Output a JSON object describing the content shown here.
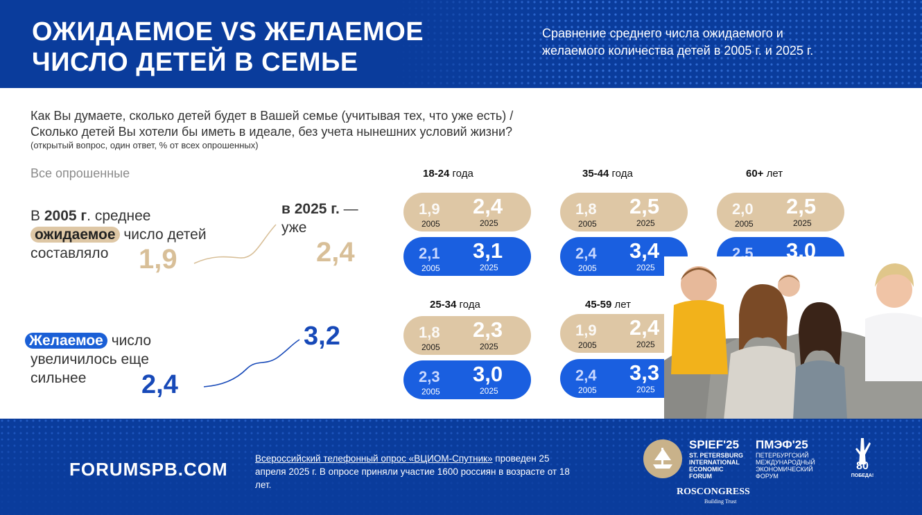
{
  "header": {
    "title_line1": "ОЖИДАЕМОЕ VS ЖЕЛАЕМОЕ",
    "title_line2": "ЧИСЛО ДЕТЕЙ В СЕМЬЕ",
    "subtitle_line1": "Сравнение среднего числа ожидаемого и",
    "subtitle_line2": "желаемого количества детей в 2005 г. и 2025 г."
  },
  "question": {
    "line1": "Как Вы думаете, сколько детей будет в Вашей семье (учитывая тех, что уже есть) /",
    "line2": "Сколько детей Вы хотели бы иметь в идеале, без учета нынешних условий жизни?",
    "note": "(открытый вопрос, один ответ, % от всех опрошенных)"
  },
  "all_respondents": {
    "label": "Все опрошенные",
    "expected": {
      "pre": "В ",
      "year": "2005 г",
      "post": ". среднее",
      "highlight": "ожидаемое",
      "after_highlight": " число детей",
      "line3": "составляло",
      "value_2005": "1,9",
      "label_2025_bold": "в 2025 г.",
      "label_2025_rest": " —",
      "label_2025_line2": "уже",
      "value_2025": "2,4"
    },
    "desired": {
      "highlight": "Желаемое",
      "after_highlight": " число",
      "line2": "увеличилось еще",
      "line3": "сильнее",
      "value_2005": "2,4",
      "value_2025": "3,2"
    }
  },
  "year_labels": {
    "y2005": "2005",
    "y2025": "2025"
  },
  "age_groups": [
    {
      "age_bold": "18-24",
      "age_rest": " года",
      "expected_2005": "1,9",
      "expected_2025": "2,4",
      "desired_2005": "2,1",
      "desired_2025": "3,1"
    },
    {
      "age_bold": "35-44",
      "age_rest": " года",
      "expected_2005": "1,8",
      "expected_2025": "2,5",
      "desired_2005": "2,4",
      "desired_2025": "3,4"
    },
    {
      "age_bold": "60+",
      "age_rest": " лет",
      "expected_2005": "2,0",
      "expected_2025": "2,5",
      "desired_2005": "2,5",
      "desired_2025": "3,0"
    },
    {
      "age_bold": "25-34",
      "age_rest": " года",
      "expected_2005": "1,8",
      "expected_2025": "2,3",
      "desired_2005": "2,3",
      "desired_2025": "3,0"
    },
    {
      "age_bold": "45-59",
      "age_rest": " лет",
      "expected_2005": "1,9",
      "expected_2025": "2,4",
      "desired_2005": "2,4",
      "desired_2025": "3,3"
    }
  ],
  "footer": {
    "site": "FORUMSPB.COM",
    "note_link": "Всероссийский телефонный опрос «ВЦИОМ-Спутник»",
    "note_rest": " проведен 25 апреля 2025 г. В опросе приняли участие 1600 россиян в возрасте от 18 лет.",
    "spief": "SPIEF'25",
    "spief_sub": [
      "ST. PETERSBURG",
      "INTERNATIONAL",
      "ECONOMIC",
      "FORUM"
    ],
    "pmef": "ПМЭФ'25",
    "pmef_sub": [
      "ПЕТЕРБУРГСКИЙ",
      "МЕЖДУНАРОДНЫЙ",
      "ЭКОНОМИЧЕСКИЙ",
      "ФОРУМ"
    ],
    "roscongress": "ROSCONGRESS",
    "building_trust": "Building Trust",
    "victory_num": "80",
    "victory_word": "ПОБЕДА!"
  },
  "colors": {
    "navy": "#0a3c9c",
    "beige": "#dec7a5",
    "beige_text": "#d8bf98",
    "blue": "#1a5fe0",
    "blue_text": "#1749b8"
  }
}
